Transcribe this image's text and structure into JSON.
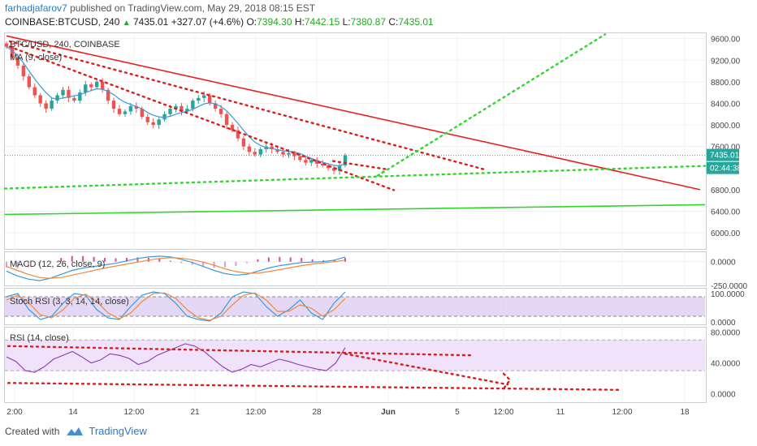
{
  "header": {
    "author": "farhadjafarov7",
    "published_text": "published on TradingView.com, May 29, 2018 08:15 EST",
    "symbol": "COINBASE:BTCUSD, 240",
    "last": "7435.01",
    "change": "+327.07 (+4.6%)",
    "o_label": "O:",
    "o_value": "7394.30",
    "h_label": "H:",
    "h_value": "7442.15",
    "l_label": "L:",
    "l_value": "7380.87",
    "c_label": "C:",
    "c_value": "7435.01"
  },
  "footer": {
    "created_with": "Created with",
    "brand": "TradingView"
  },
  "colors": {
    "up": "#26a69a",
    "down": "#ef5350",
    "ma": "#3a9ad9",
    "trend_red": "#e8201e",
    "trend_green": "#31d62a",
    "dots_green": "#31d62a",
    "dots_red": "#dd1c1c",
    "price_badge": "#26a69a",
    "stoch_fill": "#d9c7ef",
    "rsi_fill": "#f0e2fa",
    "macd": "#3a9ad9",
    "signal": "#f0883e",
    "stoch_k": "#3a9ad9",
    "stoch_d": "#f0883e",
    "rsi": "#8e3bb0"
  },
  "chart_data": [
    {
      "type": "candlestick",
      "title": "BTC/USD, 240, COINBASE",
      "indicator_label": "MA (9, close)",
      "ylim": [
        5700,
        9700
      ],
      "y_ticks": [
        "9600.00",
        "9200.00",
        "8800.00",
        "8400.00",
        "8000.00",
        "7600.00",
        "6800.00",
        "6400.00",
        "6000.00"
      ],
      "x_ticks": [
        "2:00",
        "14",
        "12:00",
        "21",
        "12:00",
        "28",
        "Jun",
        "5",
        "12:00",
        "11",
        "12:00",
        "18"
      ],
      "last_price_label": "7435.01",
      "countdown_label": "02:44:38",
      "series": [
        {
          "name": "BTC/USD",
          "values": [
            9450,
            9250,
            9100,
            8900,
            8700,
            8550,
            8400,
            8300,
            8450,
            8550,
            8650,
            8500,
            8450,
            8600,
            8750,
            8700,
            8800,
            8650,
            8450,
            8300,
            8200,
            8250,
            8350,
            8300,
            8150,
            8050,
            8000,
            8100,
            8200,
            8300,
            8350,
            8250,
            8300,
            8450,
            8500,
            8550,
            8400,
            8300,
            8200,
            8000,
            7900,
            7750,
            7600,
            7500,
            7450,
            7550,
            7600,
            7550,
            7500,
            7450,
            7480,
            7420,
            7350,
            7300,
            7350,
            7280,
            7250,
            7200,
            7150,
            7250,
            7435
          ]
        },
        {
          "name": "MA (9, close)",
          "values": [
            9450,
            9380,
            9280,
            9150,
            9000,
            8850,
            8720,
            8600,
            8500,
            8480,
            8500,
            8520,
            8540,
            8560,
            8600,
            8640,
            8670,
            8660,
            8620,
            8560,
            8480,
            8420,
            8380,
            8340,
            8300,
            8230,
            8180,
            8150,
            8140,
            8160,
            8200,
            8230,
            8250,
            8290,
            8340,
            8390,
            8410,
            8390,
            8340,
            8260,
            8150,
            8030,
            7900,
            7780,
            7680,
            7620,
            7580,
            7560,
            7540,
            7520,
            7510,
            7500,
            7470,
            7420,
            7380,
            7340,
            7310,
            7280,
            7250,
            7240,
            7280
          ]
        }
      ],
      "annotations": [
        "Descending resistance trendline",
        "Horizontal support near 6400",
        "Projected dotted upward path"
      ]
    },
    {
      "type": "line",
      "title": "MACD (12, 26, close, 9)",
      "y_ticks": [
        "0.0000",
        "-250.0000"
      ],
      "series": [
        {
          "name": "MACD",
          "values": [
            -120,
            -180,
            -220,
            -240,
            -210,
            -160,
            -110,
            -80,
            -60,
            -40,
            -20,
            10,
            40,
            60,
            70,
            60,
            30,
            -10,
            -60,
            -110,
            -150,
            -170,
            -160,
            -120,
            -80,
            -50,
            -30,
            -10,
            -5,
            0,
            20,
            60
          ]
        },
        {
          "name": "Signal",
          "values": [
            -60,
            -110,
            -160,
            -200,
            -210,
            -200,
            -170,
            -140,
            -110,
            -80,
            -55,
            -30,
            -5,
            20,
            40,
            50,
            45,
            25,
            -5,
            -45,
            -90,
            -125,
            -145,
            -145,
            -125,
            -100,
            -75,
            -50,
            -30,
            -15,
            0,
            20
          ]
        }
      ]
    },
    {
      "type": "line",
      "title": "Stoch RSI (3, 3, 14, 14, close)",
      "y_ticks": [
        "100.0000",
        "0.0000"
      ],
      "series": [
        {
          "name": "K",
          "values": [
            80,
            90,
            40,
            10,
            20,
            60,
            90,
            85,
            40,
            15,
            10,
            50,
            85,
            95,
            90,
            60,
            20,
            10,
            5,
            30,
            80,
            95,
            90,
            50,
            20,
            40,
            70,
            30,
            10,
            60,
            95
          ]
        },
        {
          "name": "D",
          "values": [
            70,
            85,
            60,
            25,
            15,
            40,
            75,
            88,
            65,
            30,
            12,
            30,
            65,
            90,
            92,
            75,
            40,
            15,
            8,
            20,
            55,
            85,
            92,
            70,
            35,
            35,
            55,
            45,
            20,
            40,
            75
          ]
        }
      ]
    },
    {
      "type": "line",
      "title": "RSI (14, close)",
      "y_ticks": [
        "80.0000",
        "40.0000",
        "0.0000"
      ],
      "series": [
        {
          "name": "RSI",
          "values": [
            48,
            42,
            30,
            28,
            35,
            45,
            50,
            55,
            48,
            40,
            44,
            52,
            50,
            46,
            38,
            42,
            50,
            55,
            60,
            65,
            62,
            55,
            45,
            35,
            28,
            32,
            38,
            35,
            40,
            45,
            42,
            38,
            35,
            32,
            30,
            40,
            60
          ]
        }
      ]
    }
  ]
}
